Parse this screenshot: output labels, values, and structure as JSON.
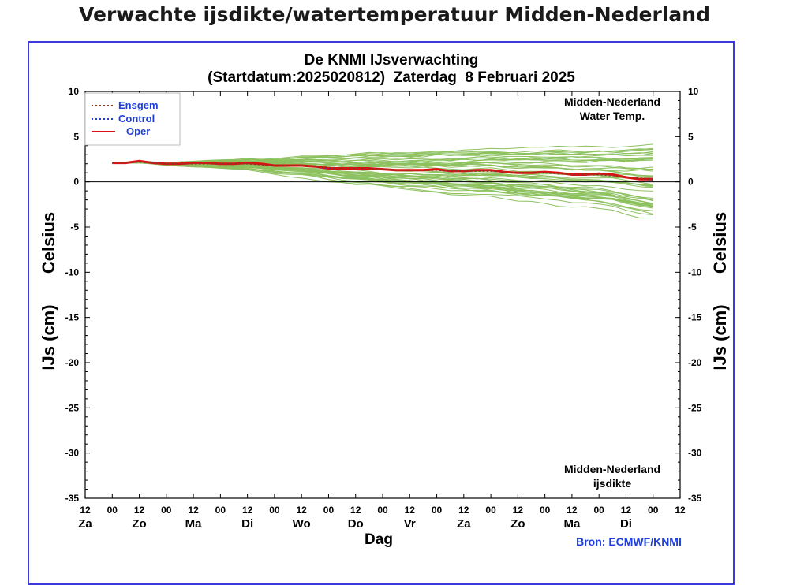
{
  "page_title": "Verwachte ijsdikte/watertemperatuur Midden-Nederland",
  "chart_data": {
    "type": "line",
    "title": "De KNMI IJsverwachting",
    "subtitle": "(Startdatum:2025020812)  Zaterdag  8 Februari 2025",
    "ylabel_left": "IJs (cm)   Celsius",
    "ylabel_right": "IJs (cm)   Celsius",
    "ylabel_celsius": "Celsius",
    "ylabel_ijs": "IJs (cm)",
    "xlabel": "Dag",
    "source": "Bron: ECMWF/KNMI",
    "ylim": [
      -35,
      10
    ],
    "yticks": [
      10,
      5,
      0,
      -5,
      -10,
      -15,
      -20,
      -25,
      -30,
      -35
    ],
    "xticks_hours": [
      "12",
      "00",
      "12",
      "00",
      "12",
      "00",
      "12",
      "00",
      "12",
      "00",
      "12",
      "00",
      "12",
      "00",
      "12",
      "00",
      "12",
      "00",
      "12",
      "00",
      "12",
      "00",
      "12"
    ],
    "xticks_days": [
      "Za",
      "Zo",
      "Ma",
      "Di",
      "Wo",
      "Do",
      "Vr",
      "Za",
      "Zo",
      "Ma",
      "Di"
    ],
    "annotation_top": [
      "Midden-Nederland",
      "Water Temp."
    ],
    "annotation_bottom": [
      "Midden-Nederland",
      "ijsdikte"
    ],
    "legend": [
      {
        "label": "Ensgem",
        "style": "dotted",
        "color": "#8b3a1a"
      },
      {
        "label": "Control",
        "style": "dotted",
        "color": "#1f3fdc"
      },
      {
        "label": "Oper",
        "style": "solid",
        "color": "#e01010"
      }
    ],
    "x_hours": [
      0,
      6,
      12,
      18,
      24,
      30,
      36,
      42,
      48,
      54,
      60,
      66,
      72,
      78,
      84,
      90,
      96,
      102,
      108,
      114,
      120,
      126,
      132,
      138,
      144,
      150,
      156,
      162,
      168,
      174,
      180,
      186,
      192,
      198,
      204,
      210,
      216,
      222,
      228,
      234,
      240
    ],
    "oper": [
      2.1,
      2.1,
      2.3,
      2.1,
      2.0,
      2.0,
      2.1,
      2.1,
      2.0,
      2.0,
      2.1,
      2.0,
      1.8,
      1.8,
      1.8,
      1.7,
      1.5,
      1.5,
      1.5,
      1.5,
      1.4,
      1.3,
      1.3,
      1.3,
      1.4,
      1.2,
      1.2,
      1.3,
      1.3,
      1.1,
      1.0,
      1.0,
      1.1,
      1.0,
      0.8,
      0.8,
      0.9,
      0.8,
      0.5,
      0.3,
      0.3
    ],
    "ensgem": [
      2.1,
      2.1,
      2.2,
      2.1,
      2.0,
      2.0,
      2.0,
      2.0,
      2.0,
      2.0,
      2.0,
      1.9,
      1.8,
      1.8,
      1.8,
      1.7,
      1.6,
      1.5,
      1.5,
      1.5,
      1.4,
      1.3,
      1.3,
      1.3,
      1.3,
      1.2,
      1.2,
      1.2,
      1.2,
      1.1,
      1.0,
      1.0,
      1.0,
      0.9,
      0.8,
      0.8,
      0.8,
      0.7,
      0.5,
      0.4,
      0.3
    ],
    "control": [
      2.1,
      2.1,
      2.2,
      2.1,
      2.0,
      2.0,
      2.0,
      2.0,
      2.0,
      2.0,
      2.0,
      1.9,
      1.8,
      1.8,
      1.8,
      1.7,
      1.5,
      1.5,
      1.5,
      1.5,
      1.4,
      1.3,
      1.3,
      1.3,
      1.3,
      1.2,
      1.2,
      1.2,
      1.2,
      1.1,
      1.0,
      1.0,
      1.0,
      0.9,
      0.8,
      0.8,
      0.8,
      0.7,
      0.5,
      0.4,
      0.2
    ],
    "members_spread_start": [
      0.0,
      0.0,
      0.1,
      0.1,
      0.15,
      0.2,
      0.25,
      0.3,
      0.35,
      0.4,
      0.45,
      0.5,
      0.6,
      0.7,
      0.8,
      0.9,
      1.0,
      1.1,
      1.2,
      1.3,
      1.4,
      1.5,
      1.6,
      1.7,
      1.8,
      1.9,
      2.0,
      2.1,
      2.2,
      2.3,
      2.4,
      2.5,
      2.6,
      2.7,
      2.8,
      2.9,
      3.0,
      3.1,
      3.3,
      3.5,
      3.7
    ],
    "ensemble_color": "#8cc15e",
    "oper_color": "#e01010",
    "frame_color": "#3b3bdc"
  }
}
